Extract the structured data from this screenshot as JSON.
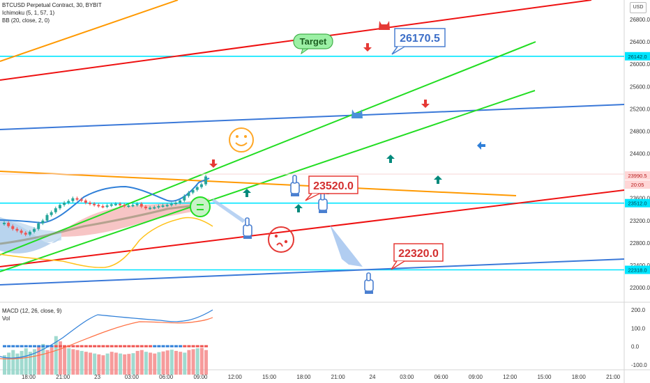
{
  "header": {
    "symbol_line": "BTCUSD Perpetual Contract, 30, BYBIT",
    "indicators": [
      "Ichimoku (5, 1, 57, 1)",
      "BB (20, close, 2, 0)"
    ],
    "currency": "USD"
  },
  "macd_header": {
    "label": "MACD (12, 26, close, 9)",
    "vol": "Vol"
  },
  "colors": {
    "up": "#26a69a",
    "down": "#ef5350",
    "cyan": "#00e5ff",
    "green": "#22dd22",
    "red": "#ee1111",
    "blue": "#3a78d8",
    "orange": "#ff9900"
  },
  "annotations": {
    "target": "Target",
    "callout_top": "26170.5",
    "callout_mid": "23520.0",
    "callout_low": "22320.0"
  },
  "price_labels": {
    "top_line": "26142.0",
    "current": "23990.5",
    "countdown": "20:05",
    "mid_line": "23512.0",
    "low_line": "22318.0"
  },
  "chart_data": [
    {
      "type": "line",
      "title": "BTCUSD Perpetual Contract, 30, BYBIT",
      "y_axis": {
        "ticks": [
          "26800.0",
          "26400.0",
          "26000.0",
          "25600.0",
          "25200.0",
          "24800.0",
          "24400.0",
          "24000.0",
          "23600.0",
          "23200.0",
          "22800.0",
          "22400.0",
          "22000.0"
        ],
        "range": [
          21850,
          27000
        ]
      },
      "x_axis": {
        "ticks": [
          "18:00",
          "21:00",
          "23",
          "03:00",
          "06:00",
          "09:00",
          "12:00",
          "15:00",
          "18:00",
          "21:00",
          "24",
          "03:00",
          "06:00",
          "09:00",
          "12:00",
          "15:00",
          "18:00",
          "21:00"
        ]
      },
      "horizontal_levels": [
        26142.0,
        23512.0,
        22318.0
      ],
      "current_price": 23990.5,
      "candles_close": [
        23160,
        23100,
        23050,
        23020,
        22980,
        22950,
        23000,
        23050,
        23150,
        23200,
        23300,
        23350,
        23420,
        23480,
        23520,
        23550,
        23600,
        23580,
        23560,
        23520,
        23500,
        23480,
        23460,
        23450,
        23470,
        23490,
        23500,
        23480,
        23460,
        23470,
        23480,
        23500,
        23450,
        23420,
        23430,
        23440,
        23460,
        23470,
        23480,
        23500,
        23520,
        23560,
        23640,
        23700,
        23750,
        23800,
        23850,
        23990
      ]
    },
    {
      "type": "bar",
      "title": "MACD (12, 26, close, 9)",
      "y_axis": {
        "ticks": [
          "200.0",
          "100.0",
          "0.0",
          "-100.0"
        ],
        "range": [
          -120,
          230
        ]
      },
      "series": [
        {
          "name": "Vol",
          "values": [
            30,
            45,
            60,
            40,
            55,
            70,
            50,
            65,
            80,
            95,
            60,
            75,
            140,
            110,
            85,
            70,
            65,
            60,
            55,
            50,
            45,
            40,
            35,
            30,
            40,
            50,
            45,
            40,
            35,
            38,
            42,
            55,
            60,
            50,
            45,
            40,
            48,
            52,
            58,
            62,
            55,
            50,
            45,
            60,
            65,
            70,
            72,
            60
          ]
        }
      ]
    }
  ]
}
